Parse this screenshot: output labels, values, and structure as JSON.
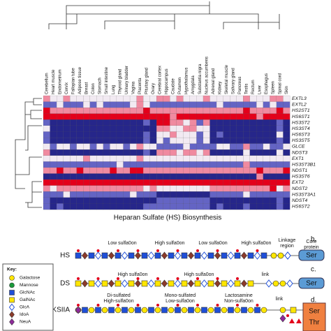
{
  "heatmap": {
    "title": "Heparan Sulfate (HS) Biosynthesis",
    "colors": [
      "#26268a",
      "#6464c4",
      "#f2eaf2",
      "#f08aa0",
      "#e3001b"
    ],
    "columns": [
      "Cerebellum",
      "Heart muscle",
      "Endometrium",
      "Cervix",
      "Fallopian tube",
      "Adipose tissue",
      "Breast",
      "Colon",
      "Stomach",
      "Small intestine",
      "Lung",
      "Thyroid gland",
      "Urinary bladder",
      "Vagina",
      "Placenta",
      "Pituitary gland",
      "Ovary",
      "Cerebral cortex",
      "Hippocampus",
      "Caudate",
      "Putamen",
      "Hypothalamus",
      "Amygdala",
      "Substantia nigra",
      "Nucleus accumbens",
      "Adrenal gland",
      "Kidney",
      "Skeletal muscle",
      "Salivary gland",
      "Pancreas",
      "Testis",
      "Rectum",
      "Liver",
      "Esophagus",
      "Spleen",
      "Spinal cord",
      "Skin"
    ],
    "rows": [
      "EXTL3",
      "EXTL2",
      "HS2ST1",
      "HS6ST1",
      "HS3ST2",
      "HS3ST4",
      "HS6ST3",
      "HS3ST5",
      "GLCE",
      "NDST3",
      "EXT1",
      "HS3ST3B1",
      "NDST1",
      "HS3ST6",
      "EXT2",
      "NDST2",
      "HS3ST3A1",
      "NDST4",
      "HS6ST2"
    ],
    "values": [
      [
        3,
        2,
        2,
        3,
        2,
        2,
        2,
        2,
        2,
        2,
        2,
        2,
        2,
        2,
        3,
        2,
        2,
        3,
        3,
        2,
        3,
        2,
        2,
        2,
        3,
        2,
        2,
        2,
        2,
        2,
        3,
        2,
        2,
        2,
        3,
        3,
        2
      ],
      [
        1,
        1,
        2,
        1,
        1,
        1,
        2,
        1,
        2,
        1,
        1,
        1,
        1,
        2,
        3,
        2,
        1,
        1,
        1,
        1,
        1,
        1,
        1,
        1,
        1,
        1,
        2,
        1,
        1,
        1,
        1,
        1,
        2,
        1,
        2,
        1,
        1
      ],
      [
        4,
        3,
        3,
        3,
        3,
        3,
        3,
        3,
        3,
        3,
        3,
        3,
        3,
        3,
        3,
        4,
        3,
        3,
        3,
        3,
        3,
        3,
        3,
        3,
        3,
        3,
        3,
        3,
        3,
        3,
        4,
        3,
        3,
        3,
        3,
        4,
        3
      ],
      [
        4,
        4,
        4,
        4,
        4,
        4,
        4,
        4,
        4,
        4,
        4,
        4,
        4,
        4,
        4,
        4,
        4,
        4,
        4,
        3,
        4,
        4,
        4,
        4,
        4,
        4,
        4,
        4,
        4,
        4,
        4,
        4,
        3,
        4,
        4,
        4,
        4
      ],
      [
        1,
        0,
        0,
        0,
        0,
        0,
        0,
        0,
        0,
        0,
        0,
        0,
        0,
        0,
        0,
        1,
        0,
        4,
        4,
        3,
        3,
        2,
        3,
        1,
        3,
        0,
        0,
        0,
        0,
        0,
        0,
        0,
        0,
        0,
        0,
        1,
        0
      ],
      [
        2,
        0,
        0,
        0,
        0,
        0,
        0,
        0,
        0,
        0,
        0,
        0,
        0,
        0,
        0,
        0,
        0,
        3,
        3,
        2,
        2,
        3,
        3,
        2,
        2,
        0,
        0,
        0,
        0,
        0,
        0,
        0,
        0,
        0,
        0,
        1,
        0
      ],
      [
        1,
        0,
        0,
        0,
        0,
        0,
        0,
        0,
        0,
        0,
        0,
        0,
        0,
        0,
        0,
        1,
        0,
        2,
        2,
        3,
        2,
        2,
        2,
        1,
        2,
        0,
        1,
        0,
        0,
        0,
        0,
        0,
        0,
        0,
        0,
        2,
        0
      ],
      [
        1,
        0,
        0,
        0,
        0,
        0,
        0,
        0,
        0,
        0,
        0,
        0,
        0,
        0,
        0,
        1,
        0,
        2,
        1,
        2,
        2,
        2,
        2,
        1,
        2,
        0,
        0,
        0,
        0,
        0,
        0,
        0,
        0,
        0,
        0,
        1,
        0
      ],
      [
        2,
        1,
        2,
        2,
        1,
        2,
        2,
        1,
        2,
        1,
        2,
        2,
        1,
        2,
        3,
        2,
        2,
        1,
        1,
        1,
        1,
        2,
        1,
        1,
        1,
        1,
        2,
        2,
        1,
        1,
        3,
        1,
        1,
        2,
        1,
        1,
        2
      ],
      [
        3,
        0,
        0,
        0,
        0,
        0,
        0,
        0,
        0,
        0,
        0,
        0,
        0,
        0,
        0,
        1,
        0,
        3,
        3,
        3,
        2,
        3,
        3,
        2,
        3,
        0,
        0,
        0,
        0,
        0,
        2,
        0,
        0,
        0,
        0,
        2,
        0
      ],
      [
        2,
        2,
        2,
        2,
        2,
        2,
        3,
        2,
        2,
        2,
        2,
        2,
        2,
        2,
        3,
        2,
        2,
        2,
        2,
        2,
        2,
        2,
        2,
        2,
        2,
        2,
        2,
        2,
        2,
        2,
        2,
        2,
        2,
        2,
        2,
        2,
        2
      ],
      [
        1,
        1,
        1,
        1,
        1,
        1,
        1,
        1,
        1,
        1,
        1,
        2,
        1,
        1,
        1,
        1,
        1,
        1,
        1,
        1,
        1,
        1,
        1,
        1,
        1,
        1,
        1,
        1,
        1,
        1,
        3,
        1,
        1,
        1,
        1,
        1,
        1
      ],
      [
        3,
        3,
        4,
        3,
        3,
        4,
        3,
        3,
        3,
        3,
        4,
        3,
        3,
        4,
        4,
        3,
        3,
        3,
        3,
        3,
        3,
        3,
        3,
        3,
        3,
        3,
        3,
        3,
        3,
        3,
        3,
        3,
        4,
        3,
        3,
        3,
        4
      ],
      [
        0,
        0,
        0,
        0,
        0,
        0,
        0,
        0,
        0,
        0,
        0,
        0,
        0,
        0,
        0,
        0,
        0,
        0,
        0,
        0,
        0,
        0,
        0,
        0,
        0,
        0,
        0,
        0,
        0,
        0,
        0,
        0,
        3,
        0,
        0,
        0,
        0
      ],
      [
        4,
        4,
        4,
        4,
        4,
        4,
        4,
        4,
        4,
        4,
        4,
        4,
        4,
        4,
        4,
        4,
        4,
        4,
        4,
        4,
        4,
        4,
        4,
        4,
        4,
        4,
        4,
        4,
        4,
        4,
        4,
        4,
        4,
        4,
        4,
        4,
        4
      ],
      [
        3,
        2,
        3,
        3,
        3,
        3,
        3,
        3,
        3,
        3,
        3,
        3,
        3,
        3,
        3,
        2,
        3,
        2,
        2,
        2,
        2,
        2,
        2,
        2,
        2,
        3,
        3,
        3,
        3,
        3,
        3,
        3,
        3,
        3,
        4,
        2,
        3
      ],
      [
        1,
        1,
        1,
        2,
        1,
        1,
        1,
        1,
        1,
        1,
        1,
        1,
        1,
        2,
        1,
        1,
        1,
        0,
        0,
        0,
        0,
        0,
        0,
        0,
        0,
        1,
        1,
        1,
        1,
        1,
        2,
        1,
        1,
        1,
        1,
        1,
        1
      ],
      [
        1,
        0,
        0,
        0,
        0,
        0,
        0,
        0,
        0,
        0,
        0,
        0,
        0,
        0,
        0,
        0,
        0,
        1,
        1,
        1,
        1,
        1,
        1,
        1,
        1,
        0,
        0,
        0,
        0,
        0,
        0,
        0,
        0,
        0,
        0,
        1,
        0
      ],
      [
        1,
        0,
        1,
        0,
        0,
        0,
        0,
        0,
        0,
        0,
        0,
        0,
        0,
        0,
        0,
        1,
        1,
        1,
        1,
        1,
        1,
        1,
        1,
        1,
        1,
        0,
        1,
        0,
        0,
        0,
        1,
        0,
        0,
        0,
        0,
        1,
        0
      ]
    ]
  },
  "panels": {
    "b": {
      "letter": "b.",
      "name": "HS",
      "segments": [
        "Low sulfa0on",
        "High sulfa0on",
        "Low sulfa0on",
        "High sulfa0on"
      ],
      "linkage": [
        "Linkage",
        "region"
      ],
      "core": [
        "Core",
        "protein"
      ],
      "anchor": "Ser"
    },
    "c": {
      "letter": "c.",
      "name": "DS",
      "segments": [
        "High sulfa0on",
        "High sulfa0on"
      ],
      "link": "link",
      "anchor": "Ser"
    },
    "d": {
      "letter": "d.",
      "name": "KSIIA",
      "segments": [
        [
          "Di-sulfated",
          "High-sulfa0on"
        ],
        [
          "Mono-sulfated",
          "Low-sulfa0on"
        ],
        [
          "Lactosamine",
          "Non-sulfa0on"
        ]
      ],
      "link": "link",
      "anchor": [
        "Ser",
        "Thr"
      ]
    }
  },
  "key": {
    "title": "Key:",
    "items": [
      "Galactose",
      "Mannose",
      "GlcNAc",
      "GalNAc",
      "GlcA",
      "IdoA",
      "NeuA"
    ]
  }
}
